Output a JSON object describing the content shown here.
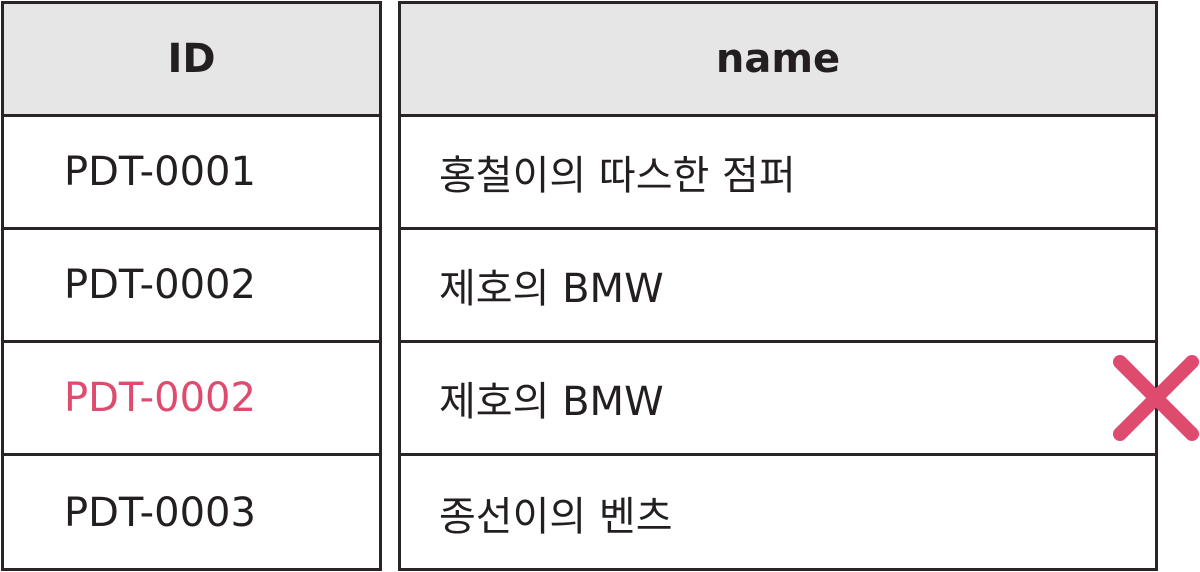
{
  "id_column": {
    "header": "ID",
    "rows": [
      "PDT-0001",
      "PDT-0002",
      "PDT-0002",
      "PDT-0003"
    ]
  },
  "name_column": {
    "header": "name",
    "rows": [
      "홍철이의 따스한 점퍼",
      "제호의 BMW",
      "제호의 BMW",
      "종선이의 벤츠"
    ]
  },
  "colors": {
    "duplicate": "#de4b6e",
    "header_bg": "#e6e6e6",
    "border": "#2a2426"
  },
  "icons": {
    "duplicate_marker": "x-mark-icon"
  }
}
